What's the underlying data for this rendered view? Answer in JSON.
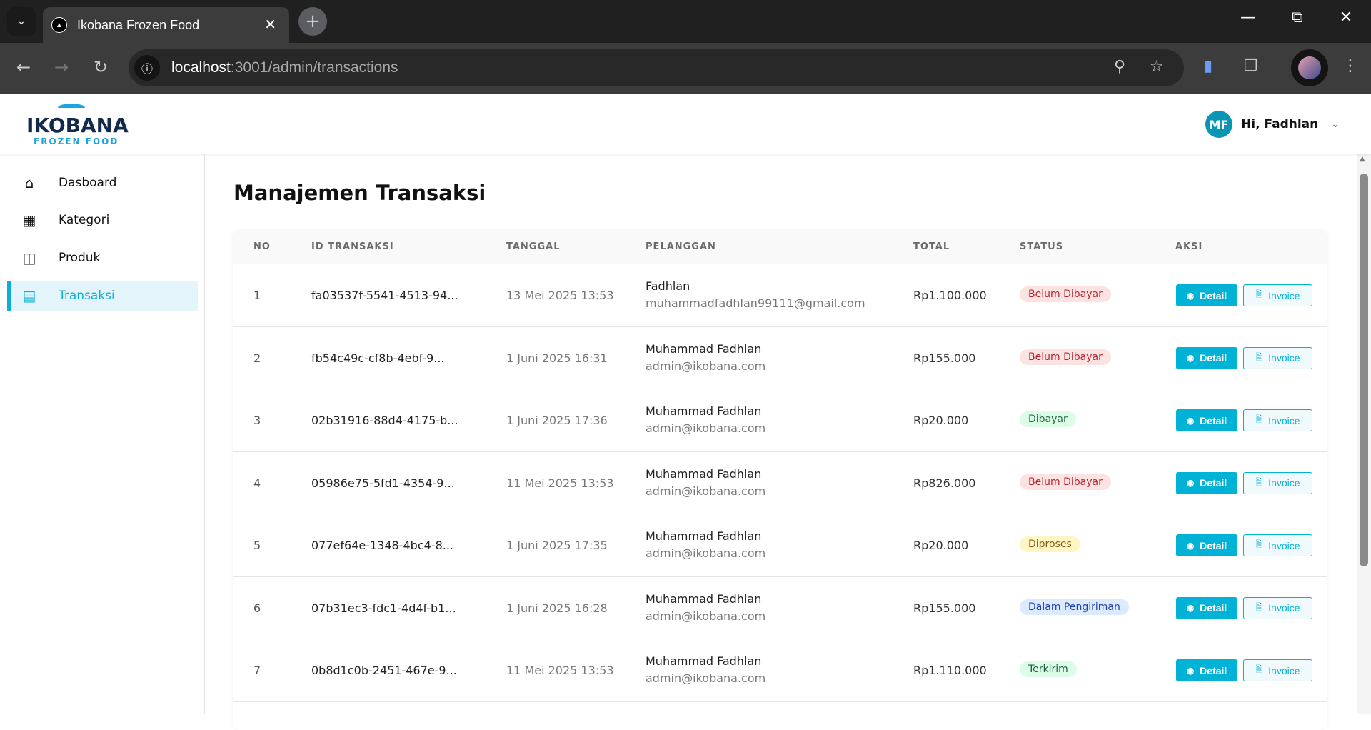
{
  "browser": {
    "tab_title": "Ikobana Frozen Food",
    "url_host": "localhost",
    "url_rest": ":3001/admin/transactions"
  },
  "header": {
    "logo_brand": "IKOBANA",
    "logo_sub": "FROZEN FOOD",
    "avatar_initials": "MF",
    "greeting": "Hi, Fadhlan"
  },
  "sidebar": {
    "items": [
      {
        "label": "Dasboard",
        "icon": "home-icon"
      },
      {
        "label": "Kategori",
        "icon": "grid-icon"
      },
      {
        "label": "Produk",
        "icon": "archive-icon"
      },
      {
        "label": "Transaksi",
        "icon": "receipt-icon",
        "active": true
      }
    ]
  },
  "main": {
    "title": "Manajemen Transaksi",
    "columns": [
      "NO",
      "ID TRANSAKSI",
      "TANGGAL",
      "PELANGGAN",
      "TOTAL",
      "STATUS",
      "AKSI"
    ],
    "detail_label": "Detail",
    "invoice_label": "Invoice",
    "rows": [
      {
        "no": "1",
        "id": "fa03537f-5541-4513-94...",
        "date": "13 Mei 2025 13:53",
        "name": "Fadhlan",
        "email": "muhammadfadhlan99111@gmail.com",
        "total": "Rp1.100.000",
        "status": "Belum Dibayar"
      },
      {
        "no": "2",
        "id": "fb54c49c-cf8b-4ebf-9...",
        "date": "1 Juni 2025 16:31",
        "name": "Muhammad Fadhlan",
        "email": "admin@ikobana.com",
        "total": "Rp155.000",
        "status": "Belum Dibayar"
      },
      {
        "no": "3",
        "id": "02b31916-88d4-4175-b...",
        "date": "1 Juni 2025 17:36",
        "name": "Muhammad Fadhlan",
        "email": "admin@ikobana.com",
        "total": "Rp20.000",
        "status": "Dibayar"
      },
      {
        "no": "4",
        "id": "05986e75-5fd1-4354-9...",
        "date": "11 Mei 2025 13:53",
        "name": "Muhammad Fadhlan",
        "email": "admin@ikobana.com",
        "total": "Rp826.000",
        "status": "Belum Dibayar"
      },
      {
        "no": "5",
        "id": "077ef64e-1348-4bc4-8...",
        "date": "1 Juni 2025 17:35",
        "name": "Muhammad Fadhlan",
        "email": "admin@ikobana.com",
        "total": "Rp20.000",
        "status": "Diproses"
      },
      {
        "no": "6",
        "id": "07b31ec3-fdc1-4d4f-b1...",
        "date": "1 Juni 2025 16:28",
        "name": "Muhammad Fadhlan",
        "email": "admin@ikobana.com",
        "total": "Rp155.000",
        "status": "Dalam Pengiriman"
      },
      {
        "no": "7",
        "id": "0b8d1c0b-2451-467e-9...",
        "date": "11 Mei 2025 13:53",
        "name": "Muhammad Fadhlan",
        "email": "admin@ikobana.com",
        "total": "Rp1.110.000",
        "status": "Terkirim"
      }
    ]
  },
  "colors": {
    "accent": "#00b2d6",
    "status": {
      "Belum Dibayar": {
        "bg": "#fde2e2",
        "fg": "#b42331"
      },
      "Dibayar": {
        "bg": "#dcfce7",
        "fg": "#1f6b3f"
      },
      "Diproses": {
        "bg": "#fef6c3",
        "fg": "#8a5a12"
      },
      "Dalam Pengiriman": {
        "bg": "#dbeafe",
        "fg": "#1e40af"
      },
      "Terkirim": {
        "bg": "#dcfce7",
        "fg": "#1f5f45"
      }
    }
  }
}
